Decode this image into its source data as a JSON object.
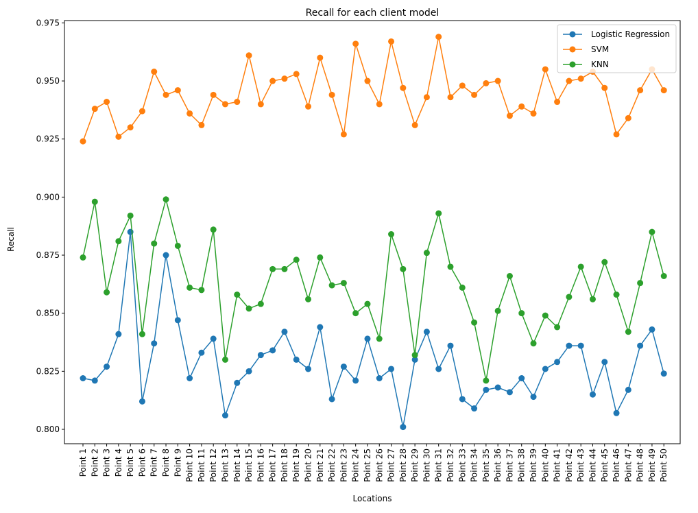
{
  "chart_data": {
    "type": "line",
    "title": "Recall for each client model",
    "xlabel": "Locations",
    "ylabel": "Recall",
    "ylim": [
      0.7938,
      0.976
    ],
    "yticks": [
      0.8,
      0.825,
      0.85,
      0.875,
      0.9,
      0.925,
      0.95,
      0.975
    ],
    "ytick_labels": [
      "0.800",
      "0.825",
      "0.850",
      "0.875",
      "0.900",
      "0.925",
      "0.950",
      "0.975"
    ],
    "grid": false,
    "legend_position": "top-right",
    "categories": [
      "Point 1",
      "Point 2",
      "Point 3",
      "Point 4",
      "Point 5",
      "Point 6",
      "Point 7",
      "Point 8",
      "Point 9",
      "Point 10",
      "Point 11",
      "Point 12",
      "Point 13",
      "Point 14",
      "Point 15",
      "Point 16",
      "Point 17",
      "Point 18",
      "Point 19",
      "Point 20",
      "Point 21",
      "Point 22",
      "Point 23",
      "Point 24",
      "Point 25",
      "Point 26",
      "Point 27",
      "Point 28",
      "Point 29",
      "Point 30",
      "Point 31",
      "Point 32",
      "Point 33",
      "Point 34",
      "Point 35",
      "Point 36",
      "Point 37",
      "Point 38",
      "Point 39",
      "Point 40",
      "Point 41",
      "Point 42",
      "Point 43",
      "Point 44",
      "Point 45",
      "Point 46",
      "Point 47",
      "Point 48",
      "Point 49",
      "Point 50"
    ],
    "series": [
      {
        "name": "Logistic Regression",
        "color": "#1f77b4",
        "values": [
          0.822,
          0.821,
          0.827,
          0.841,
          0.885,
          0.812,
          0.837,
          0.875,
          0.847,
          0.822,
          0.833,
          0.839,
          0.806,
          0.82,
          0.825,
          0.832,
          0.834,
          0.842,
          0.83,
          0.826,
          0.844,
          0.813,
          0.827,
          0.821,
          0.839,
          0.822,
          0.826,
          0.801,
          0.83,
          0.842,
          0.826,
          0.836,
          0.813,
          0.809,
          0.817,
          0.818,
          0.816,
          0.822,
          0.814,
          0.826,
          0.829,
          0.836,
          0.836,
          0.815,
          0.829,
          0.807,
          0.817,
          0.836,
          0.843,
          0.824
        ]
      },
      {
        "name": "SVM",
        "color": "#ff7f0e",
        "values": [
          0.924,
          0.938,
          0.941,
          0.926,
          0.93,
          0.937,
          0.954,
          0.944,
          0.946,
          0.936,
          0.931,
          0.944,
          0.94,
          0.941,
          0.961,
          0.94,
          0.95,
          0.951,
          0.953,
          0.939,
          0.96,
          0.944,
          0.927,
          0.966,
          0.95,
          0.94,
          0.967,
          0.947,
          0.931,
          0.943,
          0.969,
          0.943,
          0.948,
          0.944,
          0.949,
          0.95,
          0.935,
          0.939,
          0.936,
          0.955,
          0.941,
          0.95,
          0.951,
          0.954,
          0.947,
          0.927,
          0.934,
          0.946,
          0.955,
          0.946
        ]
      },
      {
        "name": "KNN",
        "color": "#2ca02c",
        "values": [
          0.874,
          0.898,
          0.859,
          0.881,
          0.892,
          0.841,
          0.88,
          0.899,
          0.879,
          0.861,
          0.86,
          0.886,
          0.83,
          0.858,
          0.852,
          0.854,
          0.869,
          0.869,
          0.873,
          0.856,
          0.874,
          0.862,
          0.863,
          0.85,
          0.854,
          0.839,
          0.884,
          0.869,
          0.832,
          0.876,
          0.893,
          0.87,
          0.861,
          0.846,
          0.821,
          0.851,
          0.866,
          0.85,
          0.837,
          0.849,
          0.844,
          0.857,
          0.87,
          0.856,
          0.872,
          0.858,
          0.842,
          0.863,
          0.885,
          0.866
        ]
      }
    ]
  }
}
